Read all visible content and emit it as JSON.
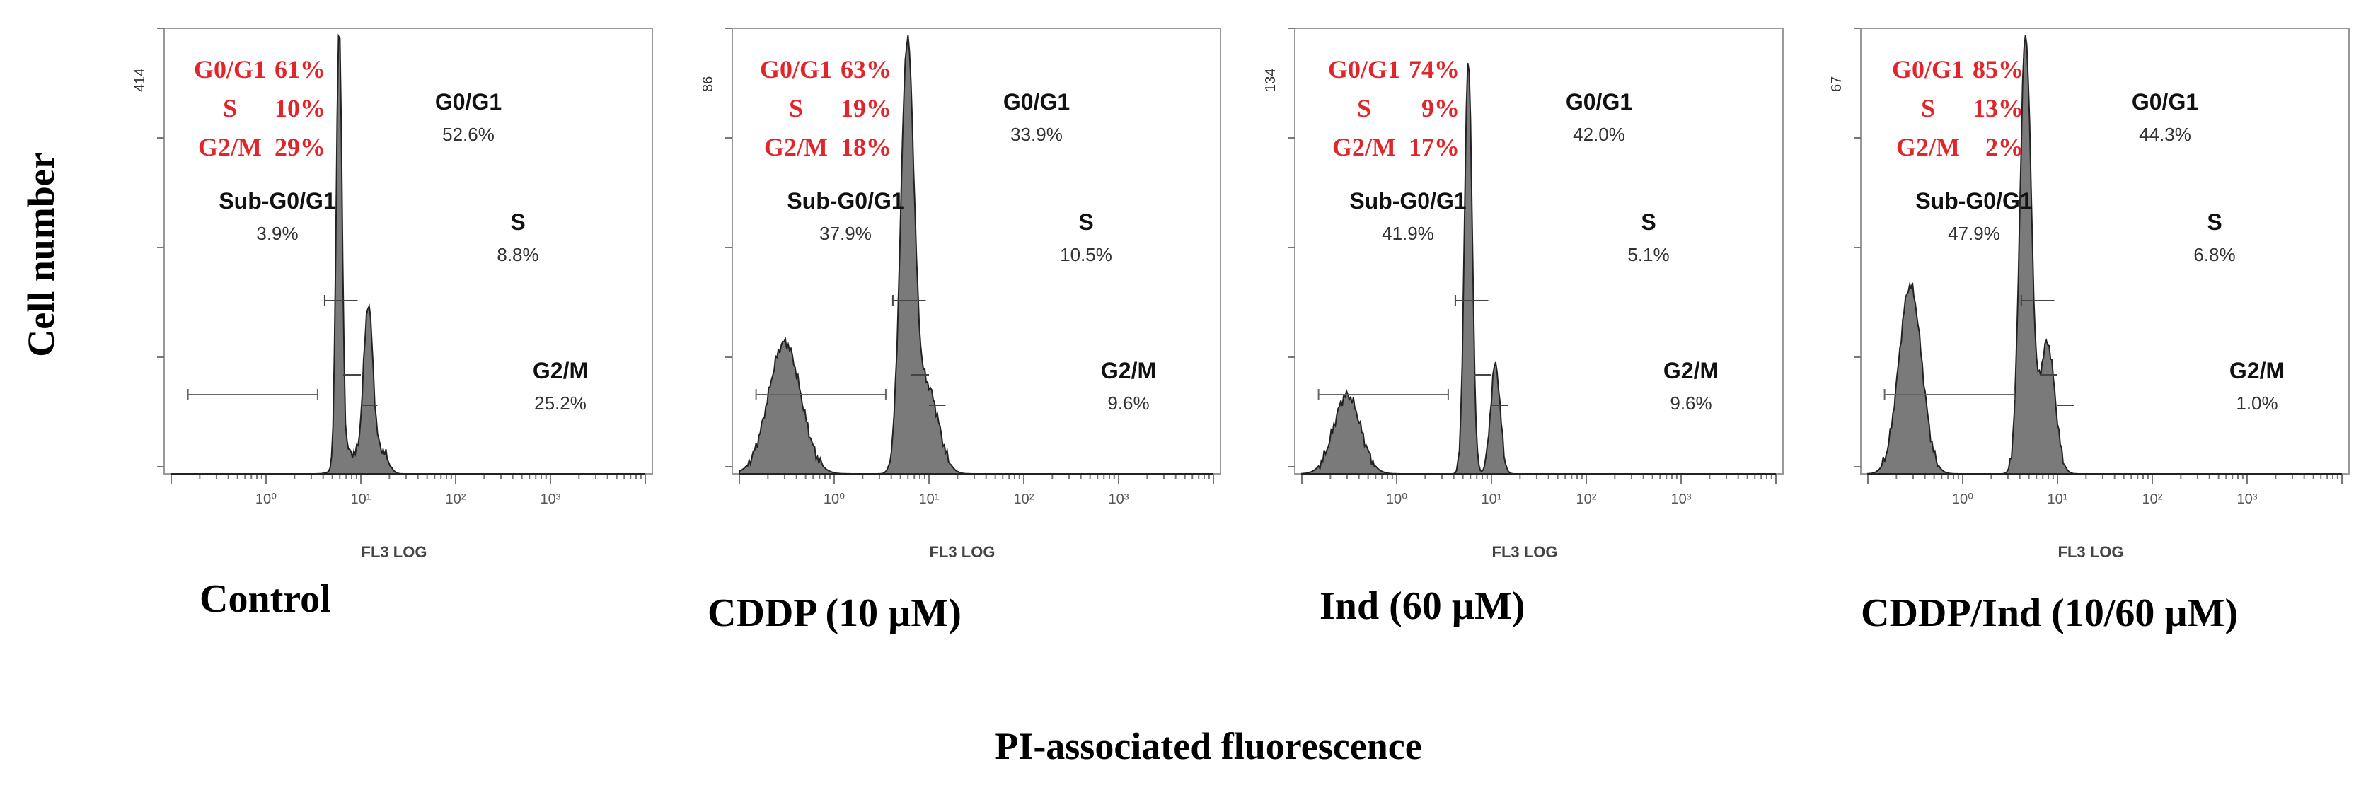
{
  "chart_data": {
    "type": "histogram",
    "y_axis_title": "Cell number",
    "x_axis_title": "PI-associated fluorescence",
    "x_scale": "log",
    "x_range": [
      0.1,
      10000
    ],
    "x_tick_labels": [
      "10⁰",
      "10¹",
      "10²",
      "10³"
    ],
    "x_tick_values": [
      1,
      10,
      100,
      1000
    ],
    "x_axis_label": "FL3 LOG",
    "panels": [
      {
        "condition": "Control",
        "y_max_label": "414",
        "summary": [
          {
            "phase": "G0/G1",
            "value": "61%"
          },
          {
            "phase": "S",
            "value": "10%"
          },
          {
            "phase": "G2/M",
            "value": "29%"
          }
        ],
        "gates": [
          {
            "name": "Sub-G0/G1",
            "value": "3.9%"
          },
          {
            "name": "G0/G1",
            "value": "52.6%"
          },
          {
            "name": "S",
            "value": "8.8%"
          },
          {
            "name": "G2/M",
            "value": "25.2%"
          }
        ],
        "gate_ranges": {
          "sub": [
            0.15,
            3.5
          ],
          "g1": [
            3.5,
            11
          ],
          "s": [
            6.5,
            10
          ],
          "g2": [
            10,
            15
          ]
        },
        "peaks": [
          {
            "center": 5.9,
            "width": 0.03,
            "height": 1.0
          },
          {
            "center": 12,
            "width": 0.05,
            "height": 0.38
          },
          {
            "center": 7.5,
            "width": 0.1,
            "height": 0.05
          },
          {
            "center": 17,
            "width": 0.06,
            "height": 0.05
          }
        ]
      },
      {
        "condition": "CDDP (10 µM)",
        "y_max_label": "86",
        "summary": [
          {
            "phase": "G0/G1",
            "value": "63%"
          },
          {
            "phase": "S",
            "value": "19%"
          },
          {
            "phase": "G2/M",
            "value": "18%"
          }
        ],
        "gates": [
          {
            "name": "Sub-G0/G1",
            "value": "37.9%"
          },
          {
            "name": "G0/G1",
            "value": "33.9%"
          },
          {
            "name": "S",
            "value": "10.5%"
          },
          {
            "name": "G2/M",
            "value": "9.6%"
          }
        ],
        "gate_ranges": {
          "sub": [
            0.15,
            3.5
          ],
          "g1": [
            3.5,
            11
          ],
          "s": [
            6.5,
            10
          ],
          "g2": [
            10,
            15
          ]
        },
        "peaks": [
          {
            "center": 0.3,
            "width": 0.17,
            "height": 0.3
          },
          {
            "center": 5.9,
            "width": 0.07,
            "height": 0.95
          },
          {
            "center": 9.5,
            "width": 0.12,
            "height": 0.2
          }
        ]
      },
      {
        "condition": "Ind (60 µM)",
        "y_max_label": "134",
        "summary": [
          {
            "phase": "G0/G1",
            "value": "74%"
          },
          {
            "phase": "S",
            "value": "9%"
          },
          {
            "phase": "G2/M",
            "value": "17%"
          }
        ],
        "gates": [
          {
            "name": "Sub-G0/G1",
            "value": "41.9%"
          },
          {
            "name": "G0/G1",
            "value": "42.0%"
          },
          {
            "name": "S",
            "value": "5.1%"
          },
          {
            "name": "G2/M",
            "value": "9.6%"
          }
        ],
        "gate_ranges": {
          "sub": [
            0.15,
            3.5
          ],
          "g1": [
            3.5,
            11
          ],
          "s": [
            6.5,
            10
          ],
          "g2": [
            10,
            15
          ]
        },
        "peaks": [
          {
            "center": 0.3,
            "width": 0.14,
            "height": 0.18
          },
          {
            "center": 5.7,
            "width": 0.04,
            "height": 0.95
          },
          {
            "center": 11,
            "width": 0.05,
            "height": 0.25
          }
        ]
      },
      {
        "condition": "CDDP/Ind (10/60 µM)",
        "y_max_label": "67",
        "summary": [
          {
            "phase": "G0/G1",
            "value": "85%"
          },
          {
            "phase": "S",
            "value": "13%"
          },
          {
            "phase": "G2/M",
            "value": "2%"
          }
        ],
        "gates": [
          {
            "name": "Sub-G0/G1",
            "value": "47.9%"
          },
          {
            "name": "G0/G1",
            "value": "44.3%"
          },
          {
            "name": "S",
            "value": "6.8%"
          },
          {
            "name": "G2/M",
            "value": "1.0%"
          }
        ],
        "gate_ranges": {
          "sub": [
            0.15,
            3.5
          ],
          "g1": [
            3.5,
            11
          ],
          "s": [
            6.5,
            10
          ],
          "g2": [
            10,
            15
          ]
        },
        "peaks": [
          {
            "center": 0.28,
            "width": 0.12,
            "height": 0.43
          },
          {
            "center": 4.6,
            "width": 0.06,
            "height": 1.0
          },
          {
            "center": 7.8,
            "width": 0.08,
            "height": 0.3
          }
        ]
      }
    ]
  }
}
